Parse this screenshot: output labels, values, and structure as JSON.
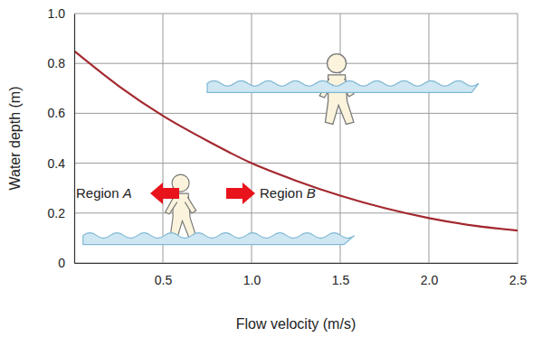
{
  "chart_data": {
    "type": "line",
    "x_label": "Flow velocity (m/s)",
    "y_label": "Water depth (m)",
    "x": [
      0,
      0.25,
      0.5,
      0.75,
      1.0,
      1.25,
      1.5,
      1.75,
      2.0,
      2.25,
      2.5
    ],
    "values": [
      0.85,
      0.71,
      0.59,
      0.49,
      0.4,
      0.33,
      0.27,
      0.22,
      0.18,
      0.15,
      0.13
    ],
    "color": "#a3282f",
    "xlim": [
      0,
      2.5
    ],
    "xticks": [
      0.5,
      {
        "value": 1,
        "label": "1.0"
      },
      1.5,
      {
        "value": 2,
        "label": "2.0"
      },
      2.5
    ],
    "ylim": [
      0,
      1
    ],
    "yticks": [
      0,
      0.2,
      0.4,
      0.6,
      0.8,
      {
        "value": 1,
        "label": "1.0"
      }
    ],
    "grid": true,
    "annotations": [
      "Region A",
      "Region B"
    ]
  }
}
